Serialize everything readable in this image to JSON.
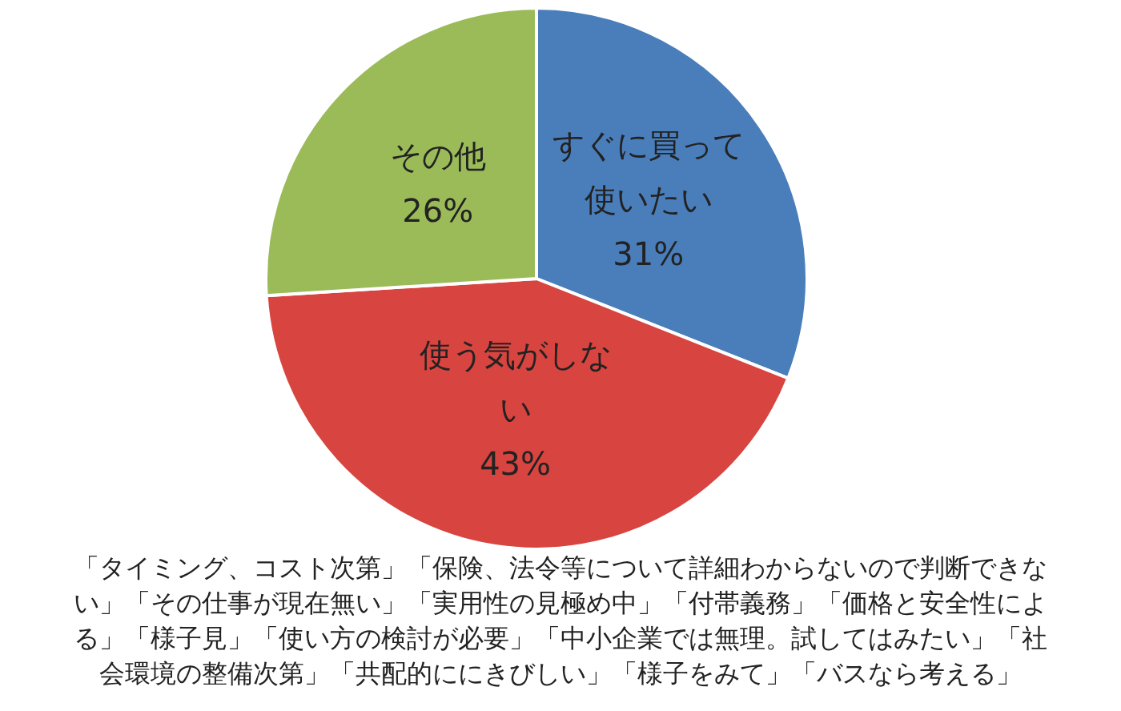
{
  "chart_data": {
    "type": "pie",
    "categories": [
      "すぐに買って使いたい",
      "使う気がしない",
      "その他"
    ],
    "values": [
      31,
      43,
      26
    ],
    "colors": [
      "#4a7ebb",
      "#d8443f",
      "#9bbb59"
    ],
    "value_labels": [
      "31%",
      "43%",
      "26%"
    ],
    "legend": false,
    "annotations": [
      "「タイミング、コスト次第」「保険、法令等について詳細わからないので判断できない」「その仕事が現在無い」「実用性の見極め中」「付帯義務」「価格と安全性による」「様子見」「使い方の検討が必要」「中小企業では無理。試してはみたい」「社会環境の整備次第」「共配的ににきびしい」「様子をみて」「バスなら考える」"
    ]
  }
}
